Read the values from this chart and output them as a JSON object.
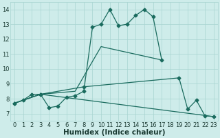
{
  "background_color": "#ceecea",
  "grid_color": "#a8d5d1",
  "line_color": "#1a6b5e",
  "line_width": 0.9,
  "marker": "D",
  "marker_size": 2.5,
  "xlabel": "Humidex (Indice chaleur)",
  "xlabel_fontsize": 7.5,
  "tick_fontsize": 6,
  "xlim": [
    -0.5,
    23.5
  ],
  "ylim": [
    6.5,
    14.5
  ],
  "yticks": [
    7,
    8,
    9,
    10,
    11,
    12,
    13,
    14
  ],
  "xticks": [
    0,
    1,
    2,
    3,
    4,
    5,
    6,
    7,
    8,
    9,
    10,
    11,
    12,
    13,
    14,
    15,
    16,
    17,
    18,
    19,
    20,
    21,
    22,
    23
  ],
  "series1_x": [
    0,
    1,
    2,
    3,
    4,
    5,
    6,
    7,
    8,
    9,
    10,
    11,
    12,
    13,
    14,
    15,
    16,
    17
  ],
  "series1_y": [
    7.7,
    7.9,
    8.3,
    8.3,
    7.4,
    7.5,
    8.1,
    8.2,
    8.5,
    12.8,
    13.0,
    14.0,
    12.9,
    13.0,
    13.6,
    14.0,
    13.5,
    10.6
  ],
  "series2_x": [
    0,
    3,
    7,
    8,
    10,
    17
  ],
  "series2_y": [
    7.7,
    8.3,
    8.5,
    9.5,
    11.5,
    10.6
  ],
  "series3_x": [
    0,
    3,
    8,
    19,
    20,
    21,
    22,
    23
  ],
  "series3_y": [
    7.7,
    8.3,
    8.8,
    9.4,
    7.3,
    7.9,
    6.85,
    6.8
  ],
  "series4_x": [
    0,
    3,
    23
  ],
  "series4_y": [
    7.7,
    8.3,
    6.8
  ]
}
